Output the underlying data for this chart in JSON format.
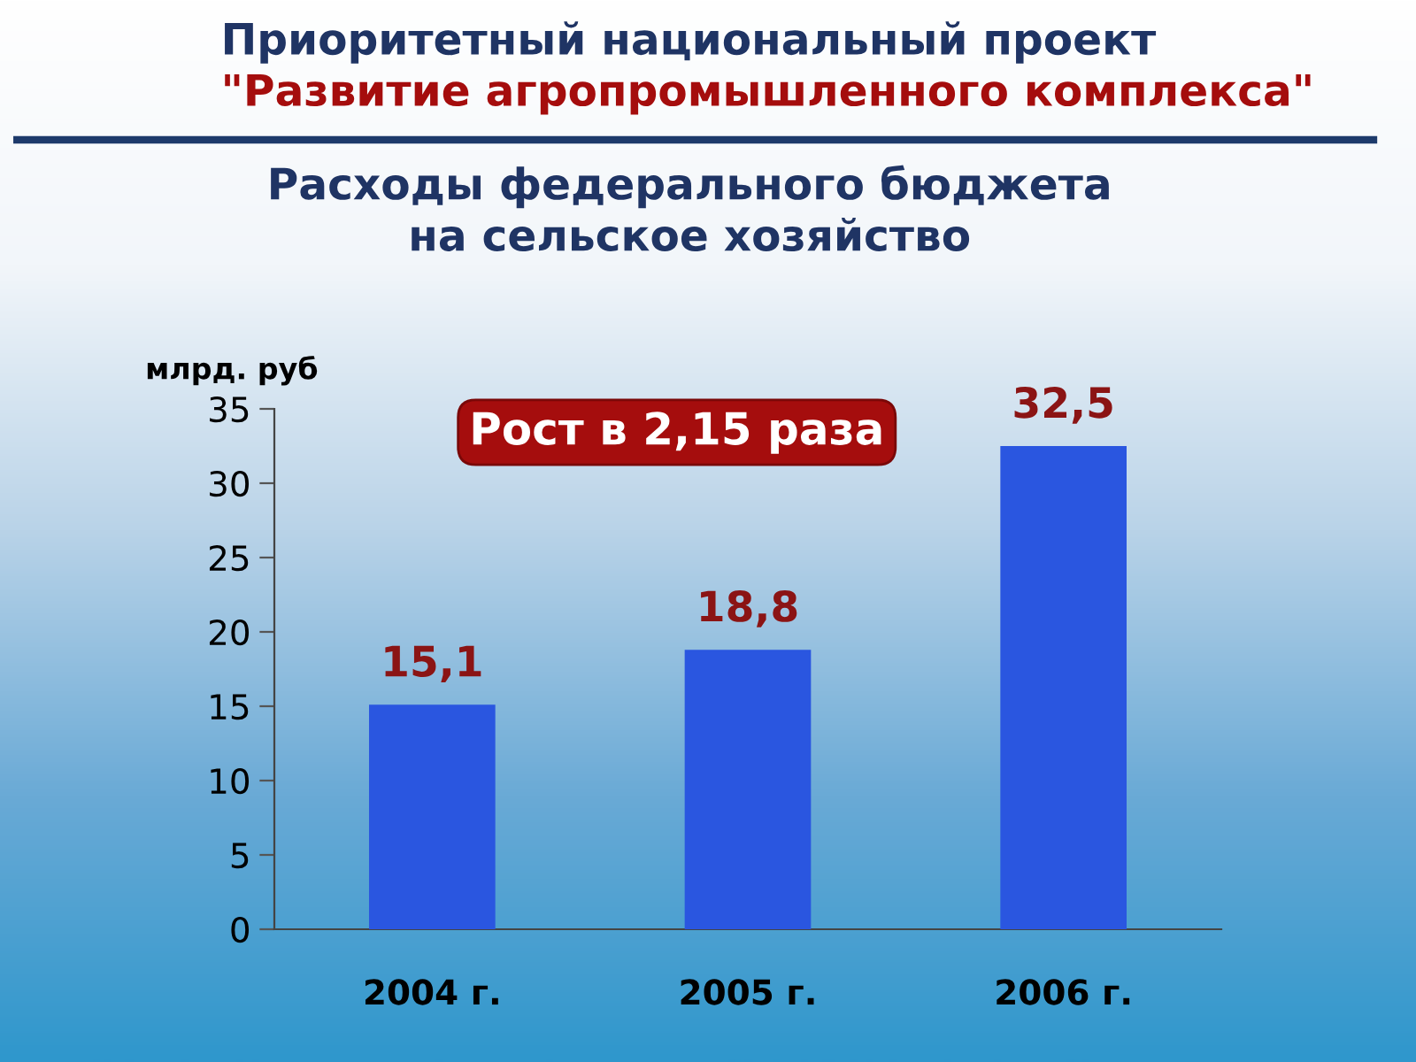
{
  "chart_data": {
    "type": "bar",
    "title": "Приоритетный национальный проект\n\"Развитие агропромышленного комплекса\"",
    "subtitle": "Расходы федерального бюджета\nна сельское хозяйство",
    "ylabel": "млрд. руб",
    "annotations": [
      "Рост в 2,15 раза"
    ],
    "categories": [
      "2004 г.",
      "2005 г.",
      "2006 г."
    ],
    "values": [
      15.1,
      18.8,
      32.5
    ],
    "value_labels": [
      "15,1",
      "18,8",
      "32,5"
    ],
    "color": "#2a56e0",
    "ylim": [
      0,
      35
    ],
    "yticks": [
      0,
      5,
      10,
      15,
      20,
      25,
      30,
      35
    ]
  }
}
